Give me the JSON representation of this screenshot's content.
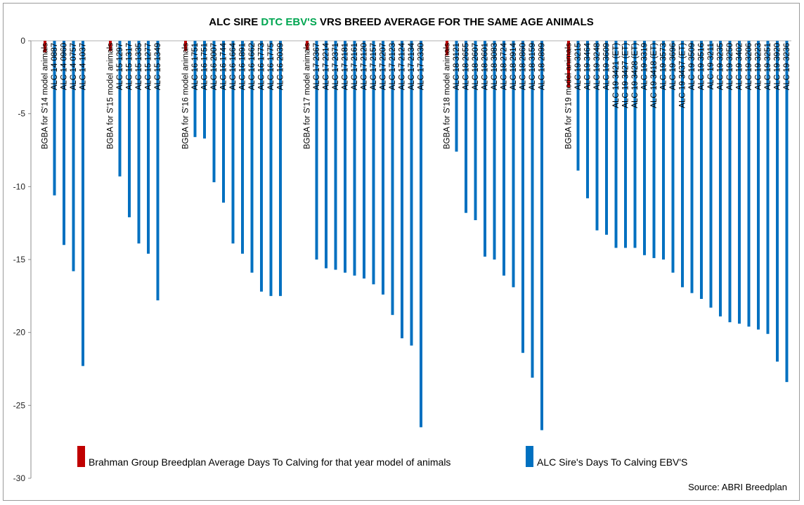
{
  "chart_data": {
    "type": "bar",
    "title": {
      "parts": [
        {
          "text": "ALC SIRE ",
          "color": "#000000"
        },
        {
          "text": "DTC EBV'S",
          "color": "#00a651"
        },
        {
          "text": " VRS BREED AVERAGE FOR THE SAME AGE ANIMALS",
          "color": "#000000"
        }
      ]
    },
    "ylim": [
      -30,
      0
    ],
    "yticks": [
      0,
      -5,
      -10,
      -15,
      -20,
      -25,
      -30
    ],
    "grid": false,
    "colors": {
      "bgba": "#c00000",
      "alc": "#0070c0"
    },
    "series": [
      {
        "name": "Brahman Group Breedplan Average Days To Calving for that year model of animals",
        "key": "bgba"
      },
      {
        "name": "ALC Sire's Days To Calving EBV'S",
        "key": "alc"
      }
    ],
    "groups": [
      {
        "label": "BGBA for S'14 model animals",
        "bgba": -0.8,
        "sires": [
          [
            "ALC 14 0887",
            -10.6
          ],
          [
            "ALC 14 0960",
            -14.0
          ],
          [
            "ALC 14 0757",
            -15.8
          ],
          [
            "ALC 14 1037",
            -22.3
          ]
        ]
      },
      {
        "label": "BGBA for S'15 model animals",
        "bgba": -0.7,
        "sires": [
          [
            "ALC 15 1297",
            -9.3
          ],
          [
            "ALC 15 1317",
            -12.1
          ],
          [
            "ALC 15 1335",
            -13.9
          ],
          [
            "ALC 15 1277",
            -14.6
          ],
          [
            "ALC 15 1349",
            -17.8
          ]
        ]
      },
      {
        "label": "BGBA for S'16 model animals",
        "bgba": -0.7,
        "sires": [
          [
            "ALC 16 1751",
            -6.6
          ],
          [
            "ALC 16 1751",
            -6.7
          ],
          [
            "ALC 16 2007",
            -9.7
          ],
          [
            "ALC 16 1744",
            -11.1
          ],
          [
            "ALC 16 1664",
            -13.9
          ],
          [
            "ALC 16 1891",
            -14.6
          ],
          [
            "ALC 16 1662",
            -15.9
          ],
          [
            "ALC 16 1773",
            -17.2
          ],
          [
            "ALC 16 1775",
            -17.5
          ],
          [
            "ALC 16 2039",
            -17.5
          ]
        ]
      },
      {
        "label": "BGBA for S'17 model animals",
        "bgba": -0.6,
        "sires": [
          [
            "ALC 17 2367",
            -15.0
          ],
          [
            "ALC 17 2214",
            -15.6
          ],
          [
            "ALC 17 2371",
            -15.7
          ],
          [
            "ALC 17 2181",
            -15.9
          ],
          [
            "ALC 17 2161",
            -16.1
          ],
          [
            "ALC 17 2120",
            -16.3
          ],
          [
            "ALC 17 2157",
            -16.7
          ],
          [
            "ALC 17 2207",
            -17.4
          ],
          [
            "ALC 17 2123",
            -18.8
          ],
          [
            "ALC 17 2124",
            -20.4
          ],
          [
            "ALC 17 2134",
            -20.9
          ],
          [
            "ALC 17 2330",
            -26.5
          ]
        ]
      },
      {
        "label": "BGBA for S'18 model animals",
        "bgba": -1.0,
        "sires": [
          [
            "ALC 18 3121",
            -7.6
          ],
          [
            "ALC 18 2655",
            -11.8
          ],
          [
            "ALC 18 2607",
            -12.3
          ],
          [
            "ALC 18 2601",
            -14.8
          ],
          [
            "ALC 18 3083",
            -15.0
          ],
          [
            "ALC 18 2724",
            -16.1
          ],
          [
            "ALC 18 2914",
            -16.9
          ],
          [
            "ALC 18 2860",
            -21.4
          ],
          [
            "ALC 18 3159",
            -23.1
          ],
          [
            "ALC 18 2899",
            -26.7
          ]
        ]
      },
      {
        "label": "BGBA for S'19 model animals",
        "bgba": -3.2,
        "sires": [
          [
            "ALC 19 3215",
            -8.9
          ],
          [
            "ALC 19 3464",
            -10.8
          ],
          [
            "ALC 19 3248",
            -13.0
          ],
          [
            "ALC 19 3609",
            -13.3
          ],
          [
            "ALC 19 3421 (ET)",
            -14.2
          ],
          [
            "ALC 19 3427 (ET)",
            -14.2
          ],
          [
            "ALC 19 3428 (ET)",
            -14.2
          ],
          [
            "ALC 19 3319",
            -14.7
          ],
          [
            "ALC 19 3418 (ET)",
            -14.9
          ],
          [
            "ALC 19 3573",
            -15.0
          ],
          [
            "ALC 19 3696",
            -15.9
          ],
          [
            "ALC 19 3437 (ET)",
            -16.9
          ],
          [
            "ALC 19 3509",
            -17.3
          ],
          [
            "ALC 19 3516",
            -17.7
          ],
          [
            "ALC 19 3211",
            -18.3
          ],
          [
            "ALC 19 3235",
            -18.9
          ],
          [
            "ALC 19 3250",
            -19.3
          ],
          [
            "ALC 19 3402",
            -19.4
          ],
          [
            "ALC 19 3206",
            -19.6
          ],
          [
            "ALC 19 3223",
            -19.8
          ],
          [
            "ALC 19 3251",
            -20.1
          ],
          [
            "ALC 19 3920",
            -22.0
          ],
          [
            "ALC 19 3236",
            -23.4
          ]
        ]
      }
    ],
    "source": "Source: ABRI Breedplan"
  }
}
